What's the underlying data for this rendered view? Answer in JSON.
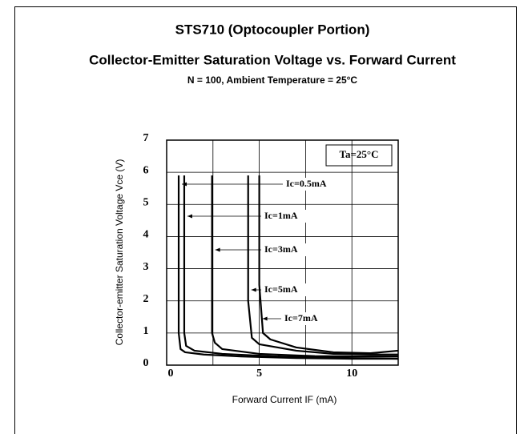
{
  "chart_data": {
    "type": "line",
    "title": "STS710 (Optocoupler Portion)",
    "subtitle": "Collector-Emitter Saturation Voltage vs. Forward Current",
    "conditions": "N = 100, Ambient Temperature = 25°C",
    "xlabel": "Forward Current IF (mA)",
    "ylabel": "Collector-emitter Saturation Voltage Vce (V)",
    "annotation": "Ta=25°C",
    "xlim": [
      0,
      12.5
    ],
    "ylim": [
      0,
      7
    ],
    "xticks": [
      0,
      5,
      10
    ],
    "xgrid": [
      2.5,
      5,
      7.5,
      10
    ],
    "yticks": [
      0,
      1,
      2,
      3,
      4,
      5,
      6,
      7
    ],
    "grid": true,
    "series": [
      {
        "name": "Ic=0.5mA",
        "color": "#000000",
        "x": [
          0.65,
          0.65,
          0.75,
          1,
          2,
          4,
          7,
          10,
          12.5
        ],
        "values": [
          5.9,
          1,
          0.5,
          0.4,
          0.33,
          0.27,
          0.22,
          0.2,
          0.2
        ]
      },
      {
        "name": "Ic=1mA",
        "color": "#000000",
        "x": [
          0.95,
          0.95,
          1.05,
          1.5,
          3,
          6,
          10,
          12.5
        ],
        "values": [
          5.9,
          1,
          0.6,
          0.45,
          0.35,
          0.27,
          0.22,
          0.2
        ]
      },
      {
        "name": "Ic=3mA",
        "color": "#000000",
        "x": [
          2.45,
          2.45,
          2.6,
          3,
          5,
          8,
          10,
          12.5
        ],
        "values": [
          5.9,
          1,
          0.7,
          0.5,
          0.35,
          0.28,
          0.27,
          0.27
        ]
      },
      {
        "name": "Ic=5mA",
        "color": "#000000",
        "x": [
          4.4,
          4.4,
          4.6,
          5,
          7,
          9,
          11,
          12.5
        ],
        "values": [
          5.9,
          2,
          0.85,
          0.65,
          0.45,
          0.35,
          0.33,
          0.33
        ]
      },
      {
        "name": "Ic=7mA",
        "color": "#000000",
        "x": [
          5,
          5,
          5.2,
          5.6,
          7,
          9,
          11,
          12.5
        ],
        "values": [
          5.9,
          2.5,
          1,
          0.8,
          0.55,
          0.4,
          0.37,
          0.45
        ]
      }
    ]
  }
}
